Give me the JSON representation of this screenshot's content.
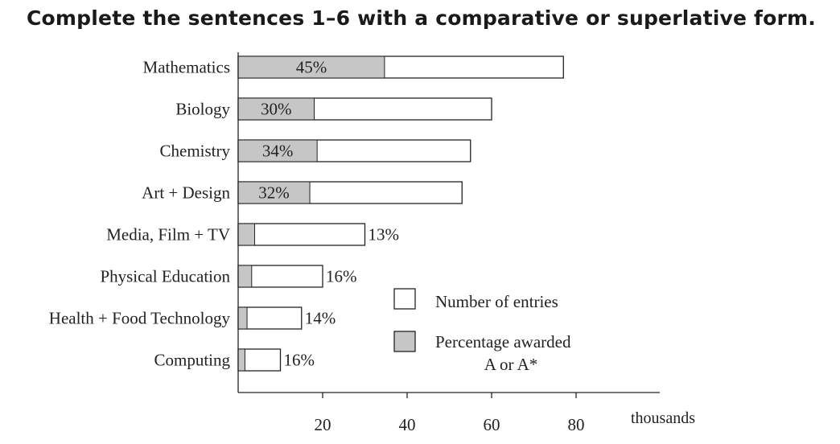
{
  "instruction": "Complete the sentences 1–6 with a comparative or superlative form.",
  "chart_data": {
    "type": "bar",
    "orientation": "horizontal",
    "categories": [
      "Mathematics",
      "Biology",
      "Chemistry",
      "Art + Design",
      "Media, Film + TV",
      "Physical Education",
      "Health + Food Technology",
      "Computing"
    ],
    "series": [
      {
        "name": "Number of entries",
        "values": [
          77,
          60,
          55,
          53,
          30,
          20,
          15,
          10
        ]
      },
      {
        "name": "Percentage awarded A or A*",
        "values": [
          45,
          30,
          34,
          32,
          13,
          16,
          14,
          16
        ]
      }
    ],
    "data_labels": [
      "45%",
      "30%",
      "34%",
      "32%",
      "13%",
      "16%",
      "14%",
      "16%"
    ],
    "x_ticks": [
      20,
      40,
      60,
      80
    ],
    "xlabel": "thousands",
    "xlim": [
      0,
      100
    ],
    "legend": {
      "position": "right",
      "entries": [
        {
          "label": "Number of entries",
          "style": "empty"
        },
        {
          "label_line1": "Percentage awarded",
          "label_line2": "A or A*",
          "style": "shaded"
        }
      ]
    },
    "grid": false,
    "colors": {
      "bar_fill": "#ffffff",
      "shaded_fill": "#c6c6c6",
      "stroke": "#222222"
    }
  }
}
